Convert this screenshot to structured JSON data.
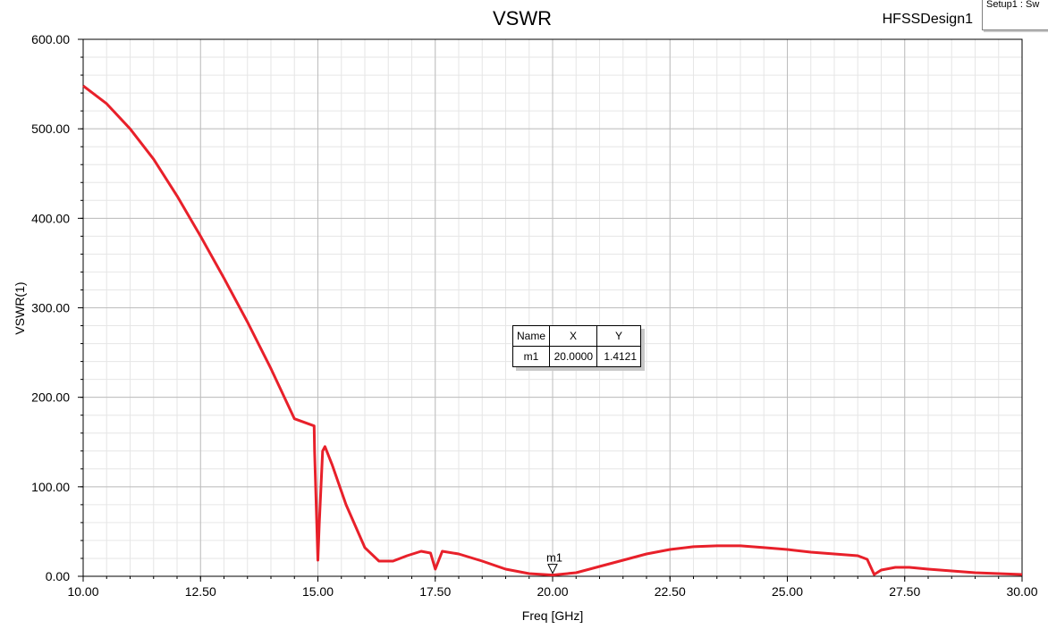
{
  "chart_data": {
    "type": "line",
    "title": "VSWR",
    "design_name": "HFSSDesign1",
    "legend_label": "Setup1 : Sw",
    "xlabel": "Freq [GHz]",
    "ylabel": "VSWR(1)",
    "xlim": [
      10,
      30
    ],
    "ylim": [
      0,
      600
    ],
    "x_ticks": [
      "10.00",
      "12.50",
      "15.00",
      "17.50",
      "20.00",
      "22.50",
      "25.00",
      "27.50",
      "30.00"
    ],
    "y_ticks": [
      "0.00",
      "100.00",
      "200.00",
      "300.00",
      "400.00",
      "500.00",
      "600.00"
    ],
    "grid": true,
    "series": [
      {
        "color": "#e8202a",
        "x": [
          10.0,
          10.5,
          11.0,
          11.5,
          12.0,
          12.5,
          13.0,
          13.5,
          14.0,
          14.5,
          14.92,
          14.93,
          15.0,
          15.03,
          15.1,
          15.15,
          15.3,
          15.6,
          16.0,
          16.3,
          16.6,
          16.9,
          17.2,
          17.4,
          17.5,
          17.65,
          18.0,
          18.5,
          19.0,
          19.5,
          20.0,
          20.5,
          21.0,
          21.5,
          22.0,
          22.5,
          23.0,
          23.5,
          24.0,
          24.5,
          25.0,
          25.5,
          26.0,
          26.5,
          26.7,
          26.85,
          27.0,
          27.3,
          27.6,
          28.0,
          28.5,
          29.0,
          29.5,
          30.0
        ],
        "y": [
          548,
          528,
          500,
          466,
          425,
          380,
          333,
          284,
          232,
          176,
          168,
          140,
          18,
          60,
          140,
          145,
          125,
          80,
          32,
          17,
          17,
          23,
          28,
          26,
          8,
          28,
          25,
          17,
          8,
          3,
          1.4,
          4,
          11,
          18,
          25,
          30,
          33,
          34,
          34,
          32,
          30,
          27,
          25,
          23,
          19,
          2,
          7,
          10,
          10,
          8,
          6,
          4,
          3,
          2
        ]
      }
    ],
    "marker": {
      "label": "m1",
      "x": 20.0,
      "y": 1.4121,
      "table": {
        "headers": [
          "Name",
          "X",
          "Y"
        ],
        "row": [
          "m1",
          "20.0000",
          "1.4121"
        ]
      }
    }
  }
}
